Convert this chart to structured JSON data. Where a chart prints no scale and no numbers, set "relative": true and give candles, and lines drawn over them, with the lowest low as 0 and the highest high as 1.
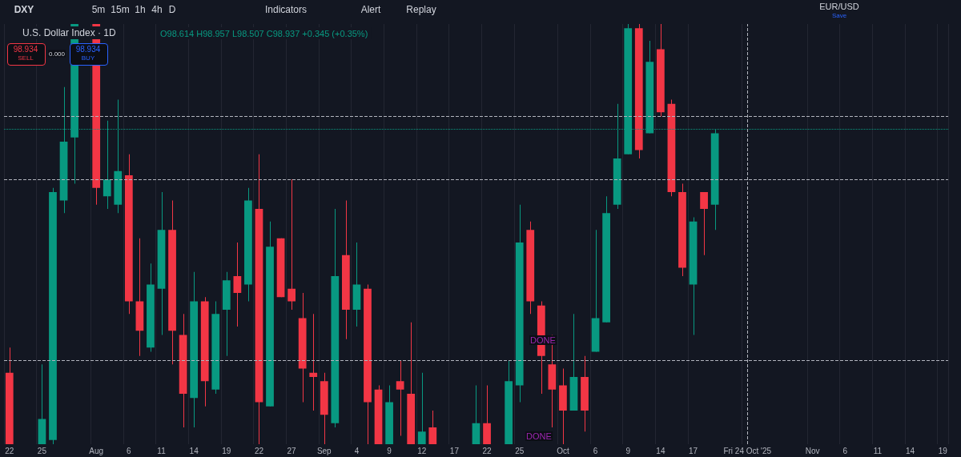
{
  "chart_data": {
    "type": "candlestick",
    "title": "U.S. Dollar Index · 1D",
    "subtitle": "O98.614 H98.957 L98.507 C98.937 +0.345 (+0.35%)",
    "relative": true,
    "grid": "x",
    "categories": [
      "22",
      null,
      null,
      "25",
      null,
      null,
      null,
      null,
      "Aug",
      null,
      null,
      "6",
      null,
      null,
      "11",
      null,
      null,
      "14",
      null,
      null,
      "19",
      null,
      null,
      "22",
      null,
      null,
      "27",
      null,
      null,
      "Sep",
      null,
      null,
      "4",
      null,
      null,
      "9",
      null,
      null,
      "12",
      null,
      null,
      "17",
      null,
      null,
      "22",
      null,
      null,
      "25",
      null,
      null,
      null,
      "Oct",
      null,
      null,
      "6",
      null,
      null,
      "9",
      null,
      null,
      "14",
      null,
      null,
      "17",
      null,
      null,
      null,
      null,
      "Fri 24 Oct '25",
      null,
      null,
      null,
      null,
      null,
      "Nov",
      null,
      null,
      "6",
      null,
      null,
      "11",
      null,
      null,
      "14",
      null,
      null,
      "19"
    ],
    "ohlc": [
      [
        0.17,
        0.23,
        0,
        0
      ],
      null,
      null,
      [
        0,
        0.19,
        0,
        0.06
      ],
      [
        0.01,
        0.61,
        0,
        0.6
      ],
      [
        0.58,
        0.85,
        0.55,
        0.72
      ],
      [
        0.73,
        1,
        0.62,
        1
      ],
      null,
      [
        1,
        1,
        0.57,
        0.61
      ],
      [
        0.59,
        0.77,
        0.56,
        0.63
      ],
      [
        0.57,
        0.82,
        0.55,
        0.65
      ],
      [
        0.64,
        0.69,
        0.31,
        0.34
      ],
      [
        0.34,
        0.49,
        0.21,
        0.27
      ],
      [
        0.23,
        0.43,
        0.22,
        0.38
      ],
      [
        0.37,
        0.6,
        0.26,
        0.51
      ],
      [
        0.51,
        0.58,
        0.19,
        0.27
      ],
      [
        0.26,
        0.31,
        0.04,
        0.12
      ],
      [
        0.11,
        0.41,
        0.04,
        0.34
      ],
      [
        0.34,
        0.35,
        0.09,
        0.15
      ],
      [
        0.13,
        0.34,
        0.12,
        0.31
      ],
      [
        0.32,
        0.41,
        0.21,
        0.39
      ],
      [
        0.4,
        0.48,
        0.28,
        0.36
      ],
      [
        0.38,
        0.61,
        0.34,
        0.58
      ],
      [
        0.56,
        0.69,
        0,
        0.1
      ],
      [
        0.09,
        0.53,
        0.09,
        0.47
      ],
      [
        0.49,
        0.49,
        0.35,
        0.35
      ],
      [
        0.37,
        0.63,
        0.32,
        0.34
      ],
      [
        0.3,
        0.36,
        0.1,
        0.18
      ],
      [
        0.17,
        0.31,
        0.08,
        0.16
      ],
      [
        0.15,
        0.17,
        0,
        0.07
      ],
      [
        0.05,
        0.56,
        0.04,
        0.4
      ],
      [
        0.45,
        0.58,
        0.25,
        0.32
      ],
      [
        0.32,
        0.48,
        0.28,
        0.38
      ],
      [
        0.37,
        0.38,
        0,
        0.1
      ],
      [
        0.13,
        0.14,
        0,
        0
      ],
      [
        0,
        0.14,
        0,
        0.1
      ],
      [
        0.15,
        0.2,
        0.02,
        0.13
      ],
      [
        0.12,
        0.29,
        0,
        0
      ],
      [
        0,
        0.17,
        0,
        0.03
      ],
      [
        0.04,
        0.08,
        0,
        0
      ],
      null,
      null,
      null,
      [
        0,
        0.14,
        0,
        0.05
      ],
      [
        0.05,
        0.14,
        0,
        0
      ],
      null,
      [
        0,
        0.2,
        0,
        0.15
      ],
      [
        0.14,
        0.57,
        0.1,
        0.48
      ],
      [
        0.51,
        0.53,
        0.31,
        0.34
      ],
      [
        0.33,
        0.34,
        0.12,
        0.21
      ],
      [
        0.19,
        0.26,
        0.04,
        0.13
      ],
      [
        0.14,
        0.18,
        0,
        0.08
      ],
      [
        0.08,
        0.31,
        0.08,
        0.16
      ],
      [
        0.16,
        0.21,
        0.03,
        0.08
      ],
      [
        0.22,
        0.51,
        0.22,
        0.3
      ],
      [
        0.29,
        0.59,
        0.29,
        0.55
      ],
      [
        0.57,
        0.81,
        0.56,
        0.68
      ],
      [
        0.69,
        1,
        0.69,
        0.99
      ],
      [
        0.99,
        1,
        0.68,
        0.7
      ],
      [
        0.74,
        0.96,
        0.74,
        0.91
      ],
      [
        0.94,
        1,
        0.78,
        0.79
      ],
      [
        0.81,
        0.82,
        0.59,
        0.6
      ],
      [
        0.6,
        0.62,
        0.4,
        0.42
      ],
      [
        0.38,
        0.54,
        0.26,
        0.53
      ],
      [
        0.6,
        0.6,
        0.45,
        0.56
      ],
      [
        0.57,
        0.75,
        0.51,
        0.74
      ],
      null,
      null,
      null,
      null,
      null,
      null,
      null,
      null,
      null,
      null,
      null,
      null,
      null,
      null,
      null,
      null,
      null,
      null,
      null,
      null,
      null
    ],
    "colors": [
      "#f23645",
      null,
      null,
      "#089981",
      "#089981",
      "#089981",
      "#089981",
      null,
      "#f23645",
      "#089981",
      "#089981",
      "#f23645",
      "#f23645",
      "#089981",
      "#089981",
      "#f23645",
      "#f23645",
      "#089981",
      "#f23645",
      "#089981",
      "#089981",
      "#f23645",
      "#089981",
      "#f23645",
      "#089981",
      "#f23645",
      "#f23645",
      "#f23645",
      "#f23645",
      "#f23645",
      "#089981",
      "#f23645",
      "#089981",
      "#f23645",
      "#f23645",
      "#089981",
      "#f23645",
      "#f23645",
      "#089981",
      "#f23645",
      null,
      null,
      null,
      "#089981",
      "#f23645",
      null,
      "#089981",
      "#089981",
      "#f23645",
      "#f23645",
      "#f23645",
      "#f23645",
      "#089981",
      "#f23645",
      "#089981",
      "#089981",
      "#089981",
      "#089981",
      "#f23645",
      "#089981",
      "#f23645",
      "#f23645",
      "#f23645",
      "#089981",
      "#f23645",
      "#089981",
      null,
      null,
      null,
      null,
      null,
      null,
      null,
      null,
      null,
      null,
      null,
      null,
      null,
      null,
      null,
      null,
      null,
      null,
      null,
      null,
      null
    ],
    "ref_lines": [
      {
        "axis": "y",
        "value": 0.78,
        "color": "#b2b5be",
        "line_style": "dashed"
      },
      {
        "axis": "y",
        "value": 0.63,
        "color": "#b2b5be",
        "line_style": "dashed"
      },
      {
        "axis": "y",
        "value": 0.2,
        "color": "#b2b5be",
        "line_style": "dashed"
      },
      {
        "axis": "y",
        "value": 0.75,
        "color": "#089981",
        "line_style": "dotted"
      },
      {
        "axis": "x",
        "value": "Fri 24 Oct '25",
        "color": "#b2b5be",
        "line_style": "dashed"
      }
    ],
    "annotations": [
      "DXY",
      "5m",
      "15m",
      "1h",
      "4h",
      "D",
      "Indicators",
      "Alert",
      "Replay",
      "EUR/USD",
      "Save",
      "98.934",
      "SELL",
      "0.000",
      "98.934",
      "BUY",
      "DONE",
      "DONE"
    ]
  }
}
